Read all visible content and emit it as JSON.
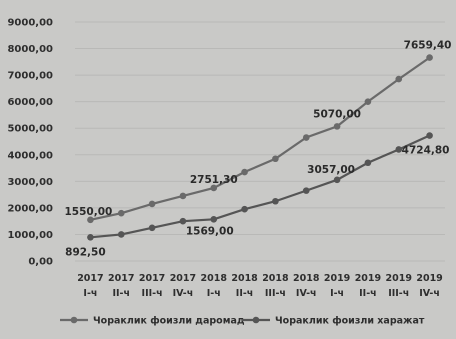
{
  "chart_data": {
    "type": "line",
    "title": "",
    "xlabel": "",
    "ylabel": "",
    "ylim": [
      0,
      9000
    ],
    "y_ticks": [
      "0,00",
      "1000,00",
      "2000,00",
      "3000,00",
      "4000,00",
      "5000,00",
      "6000,00",
      "7000,00",
      "8000,00",
      "9000,00"
    ],
    "categories": [
      {
        "year": "2017",
        "quarter": "I-ч"
      },
      {
        "year": "2017",
        "quarter": "II-ч"
      },
      {
        "year": "2017",
        "quarter": "III-ч"
      },
      {
        "year": "2017",
        "quarter": "IV-ч"
      },
      {
        "year": "2018",
        "quarter": "I-ч"
      },
      {
        "year": "2018",
        "quarter": "II-ч"
      },
      {
        "year": "2018",
        "quarter": "III-ч"
      },
      {
        "year": "2018",
        "quarter": "IV-ч"
      },
      {
        "year": "2019",
        "quarter": "I-ч"
      },
      {
        "year": "2019",
        "quarter": "II-ч"
      },
      {
        "year": "2019",
        "quarter": "III-ч"
      },
      {
        "year": "2019",
        "quarter": "IV-ч"
      }
    ],
    "series": [
      {
        "name": "Чораклик фоизли даромад",
        "color": "#6a6a6a",
        "values": [
          1550.0,
          1800,
          2150,
          2450,
          2751.3,
          3350,
          3850,
          4650,
          5070.0,
          6000,
          6850,
          7659.4
        ]
      },
      {
        "name": "Чораклик фоизли харажат",
        "color": "#555555",
        "values": [
          892.5,
          1000,
          1250,
          1500,
          1569.0,
          1950,
          2250,
          2650,
          3057.0,
          3700,
          4200,
          4724.8
        ]
      }
    ],
    "data_labels": [
      {
        "series": 0,
        "index": 0,
        "text": "1550,00"
      },
      {
        "series": 0,
        "index": 4,
        "text": "2751,30"
      },
      {
        "series": 0,
        "index": 8,
        "text": "5070,00"
      },
      {
        "series": 0,
        "index": 11,
        "text": "7659,40"
      },
      {
        "series": 1,
        "index": 0,
        "text": "892,50"
      },
      {
        "series": 1,
        "index": 4,
        "text": "1569,00"
      },
      {
        "series": 1,
        "index": 8,
        "text": "3057,00"
      },
      {
        "series": 1,
        "index": 11,
        "text": "4724,80"
      }
    ],
    "grid": true,
    "legend_position": "bottom"
  }
}
